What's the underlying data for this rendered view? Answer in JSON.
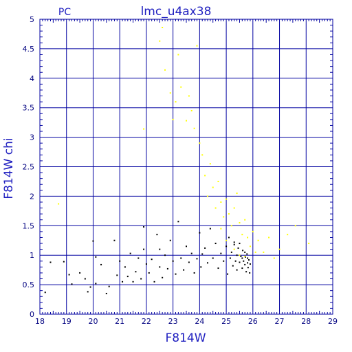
{
  "chart_data": {
    "type": "scatter",
    "title": "lmc_u4ax38",
    "subtitle": "PC",
    "xlabel": "F814W",
    "ylabel": "F814W  chi",
    "xlim": [
      18,
      29
    ],
    "ylim": [
      0,
      5
    ],
    "xticks": [
      "18",
      "19",
      "20",
      "21",
      "22",
      "23",
      "24",
      "25",
      "26",
      "27",
      "28",
      "29"
    ],
    "yticks": [
      "0",
      "0.5",
      "1",
      "1.5",
      "2",
      "2.5",
      "3",
      "3.5",
      "4",
      "4.5",
      "5"
    ],
    "grid": true,
    "colors": {
      "axes": "#0000a0",
      "grid": "#0000a0",
      "text": "#2020c0",
      "series_black": "#000000",
      "series_yellow": "#ffff00"
    },
    "series": [
      {
        "color": "#000000",
        "points": [
          [
            18.2,
            0.37
          ],
          [
            18.4,
            0.88
          ],
          [
            18.9,
            0.89
          ],
          [
            19.1,
            0.67
          ],
          [
            19.2,
            0.51
          ],
          [
            19.5,
            0.7
          ],
          [
            19.7,
            0.6
          ],
          [
            19.8,
            0.38
          ],
          [
            19.9,
            0.46
          ],
          [
            20.0,
            1.24
          ],
          [
            20.1,
            0.52
          ],
          [
            20.1,
            0.97
          ],
          [
            20.3,
            0.84
          ],
          [
            20.5,
            0.35
          ],
          [
            20.6,
            0.47
          ],
          [
            20.8,
            1.25
          ],
          [
            20.9,
            0.66
          ],
          [
            21.0,
            0.9
          ],
          [
            21.1,
            0.55
          ],
          [
            21.2,
            0.8
          ],
          [
            21.3,
            0.64
          ],
          [
            21.4,
            1.03
          ],
          [
            21.5,
            0.55
          ],
          [
            21.6,
            0.72
          ],
          [
            21.7,
            0.95
          ],
          [
            21.8,
            0.6
          ],
          [
            21.9,
            1.1
          ],
          [
            21.9,
            1.48
          ],
          [
            22.0,
            0.85
          ],
          [
            22.1,
            0.7
          ],
          [
            22.2,
            0.93
          ],
          [
            22.3,
            0.55
          ],
          [
            22.4,
            1.35
          ],
          [
            22.5,
            0.8
          ],
          [
            22.5,
            1.1
          ],
          [
            22.6,
            0.62
          ],
          [
            22.7,
            1.0
          ],
          [
            22.8,
            0.77
          ],
          [
            22.9,
            1.25
          ],
          [
            23.0,
            0.9
          ],
          [
            23.1,
            0.68
          ],
          [
            23.2,
            1.57
          ],
          [
            23.3,
            0.95
          ],
          [
            23.4,
            0.75
          ],
          [
            23.5,
            1.15
          ],
          [
            23.6,
            0.88
          ],
          [
            23.7,
            1.03
          ],
          [
            23.8,
            0.7
          ],
          [
            23.9,
            0.94
          ],
          [
            24.0,
            1.38
          ],
          [
            24.05,
            0.8
          ],
          [
            24.1,
            1.02
          ],
          [
            24.2,
            1.12
          ],
          [
            24.3,
            0.87
          ],
          [
            24.4,
            1.45
          ],
          [
            24.5,
            0.95
          ],
          [
            24.6,
            1.2
          ],
          [
            24.7,
            0.78
          ],
          [
            24.8,
            1.03
          ],
          [
            24.9,
            0.9
          ],
          [
            25.0,
            1.15
          ],
          [
            25.05,
            0.68
          ],
          [
            25.1,
            1.3
          ],
          [
            25.15,
            0.95
          ],
          [
            25.2,
            1.05
          ],
          [
            25.25,
            0.82
          ],
          [
            25.3,
            1.18
          ],
          [
            25.35,
            0.9
          ],
          [
            25.4,
            1.0
          ],
          [
            25.45,
            1.12
          ],
          [
            25.5,
            0.88
          ],
          [
            25.55,
            0.98
          ],
          [
            25.6,
            0.78
          ],
          [
            25.62,
            1.08
          ],
          [
            25.65,
            0.9
          ],
          [
            25.7,
            0.84
          ],
          [
            25.72,
            0.97
          ],
          [
            25.75,
            0.72
          ],
          [
            25.78,
            1.02
          ],
          [
            25.8,
            0.87
          ],
          [
            25.82,
            0.79
          ],
          [
            25.85,
            0.92
          ],
          [
            25.88,
            0.7
          ],
          [
            25.9,
            0.85
          ],
          [
            25.5,
            1.2
          ],
          [
            25.4,
            0.75
          ],
          [
            25.3,
            1.22
          ],
          [
            25.6,
            0.95
          ],
          [
            25.7,
            1.05
          ],
          [
            25.8,
            0.95
          ]
        ]
      },
      {
        "color": "#ffff00",
        "points": [
          [
            18.7,
            1.87
          ],
          [
            21.9,
            3.14
          ],
          [
            22.5,
            4.63
          ],
          [
            22.6,
            4.86
          ],
          [
            22.7,
            4.14
          ],
          [
            22.9,
            3.75
          ],
          [
            23.0,
            3.3
          ],
          [
            23.1,
            3.6
          ],
          [
            23.2,
            4.4
          ],
          [
            23.3,
            3.85
          ],
          [
            23.5,
            3.28
          ],
          [
            23.6,
            3.7
          ],
          [
            23.7,
            3.45
          ],
          [
            23.8,
            3.15
          ],
          [
            23.9,
            4.55
          ],
          [
            24.0,
            2.9
          ],
          [
            24.1,
            2.7
          ],
          [
            24.2,
            2.35
          ],
          [
            24.3,
            2.0
          ],
          [
            24.4,
            2.55
          ],
          [
            24.5,
            2.15
          ],
          [
            24.6,
            1.8
          ],
          [
            24.7,
            2.25
          ],
          [
            24.8,
            1.9
          ],
          [
            24.9,
            1.65
          ],
          [
            25.0,
            1.95
          ],
          [
            25.1,
            1.7
          ],
          [
            25.2,
            1.5
          ],
          [
            25.3,
            1.8
          ],
          [
            25.4,
            2.05
          ],
          [
            25.5,
            1.55
          ],
          [
            25.6,
            1.35
          ],
          [
            25.7,
            1.6
          ],
          [
            25.8,
            1.3
          ],
          [
            25.9,
            1.15
          ],
          [
            26.0,
            1.4
          ],
          [
            26.2,
            1.25
          ],
          [
            26.4,
            1.05
          ],
          [
            26.6,
            1.3
          ],
          [
            26.8,
            0.95
          ],
          [
            27.0,
            1.1
          ],
          [
            27.3,
            1.35
          ],
          [
            27.6,
            1.5
          ],
          [
            28.1,
            1.2
          ],
          [
            25.3,
            1.1
          ],
          [
            25.5,
            1.0
          ],
          [
            25.7,
            0.98
          ],
          [
            26.1,
            1.05
          ],
          [
            25.0,
            1.25
          ],
          [
            24.8,
            1.45
          ]
        ]
      }
    ]
  }
}
